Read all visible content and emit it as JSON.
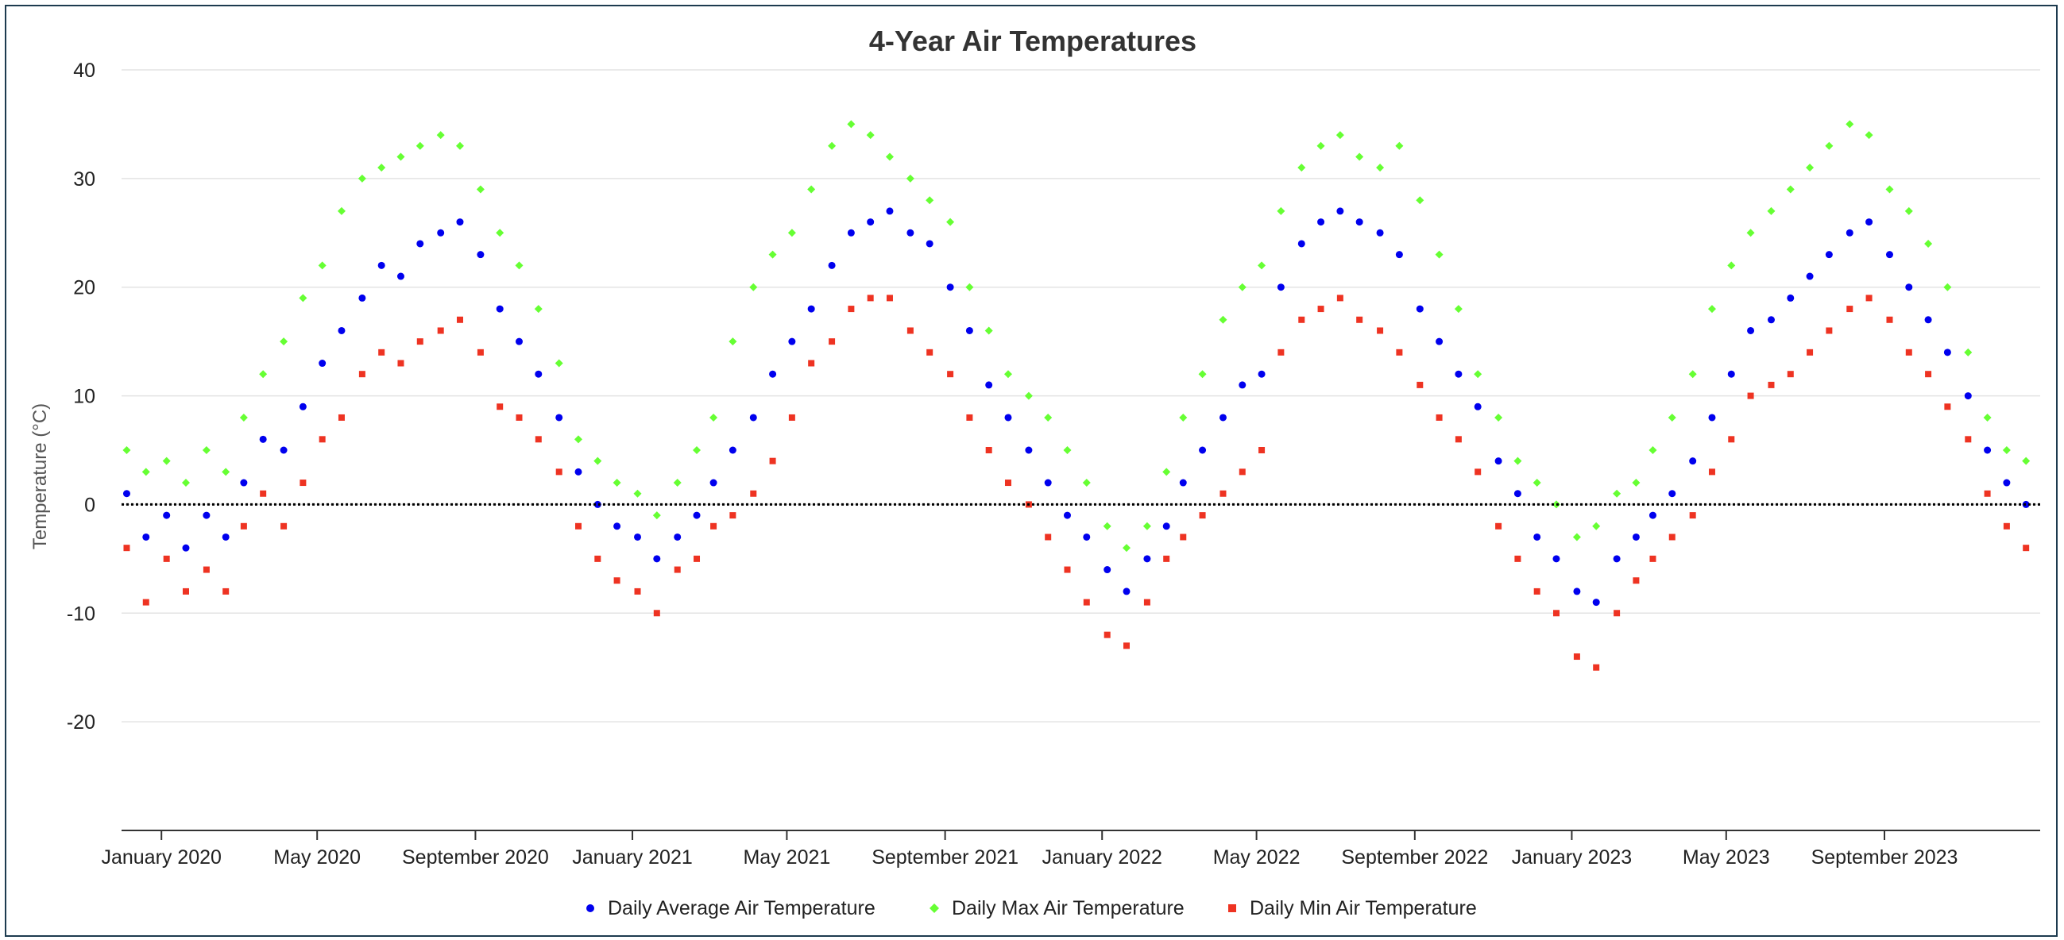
{
  "chart_data": {
    "type": "scatter",
    "title": "4-Year Air Temperatures",
    "xlabel": "",
    "ylabel": "Temperature (°C)",
    "x_range": [
      "2019-12-01",
      "2023-12-31"
    ],
    "ylim": [
      -30,
      40
    ],
    "y_ticks": [
      40,
      30,
      20,
      10,
      0,
      -10,
      -20
    ],
    "x_ticks": [
      {
        "date": "2020-01-01",
        "label": "January 2020"
      },
      {
        "date": "2020-05-01",
        "label": "May 2020"
      },
      {
        "date": "2020-09-01",
        "label": "September 2020"
      },
      {
        "date": "2021-01-01",
        "label": "January 2021"
      },
      {
        "date": "2021-05-01",
        "label": "May 2021"
      },
      {
        "date": "2021-09-01",
        "label": "September 2021"
      },
      {
        "date": "2022-01-01",
        "label": "January 2022"
      },
      {
        "date": "2022-05-01",
        "label": "May 2022"
      },
      {
        "date": "2022-09-01",
        "label": "September 2022"
      },
      {
        "date": "2023-01-01",
        "label": "January 2023"
      },
      {
        "date": "2023-05-01",
        "label": "May 2023"
      },
      {
        "date": "2023-09-01",
        "label": "September 2023"
      }
    ],
    "reference_line": {
      "y": 0,
      "style": "dotted",
      "color": "#000000"
    },
    "grid": "horizontal",
    "legend_position": "bottom-center",
    "series": [
      {
        "name": "Daily Average Air Temperature",
        "marker": "circle",
        "color": "#0000ee",
        "x": [
          "2019-12-05",
          "2019-12-20",
          "2020-01-05",
          "2020-01-20",
          "2020-02-05",
          "2020-02-20",
          "2020-03-05",
          "2020-03-20",
          "2020-04-05",
          "2020-04-20",
          "2020-05-05",
          "2020-05-20",
          "2020-06-05",
          "2020-06-20",
          "2020-07-05",
          "2020-07-20",
          "2020-08-05",
          "2020-08-20",
          "2020-09-05",
          "2020-09-20",
          "2020-10-05",
          "2020-10-20",
          "2020-11-05",
          "2020-11-20",
          "2020-12-05",
          "2020-12-20",
          "2021-01-05",
          "2021-01-20",
          "2021-02-05",
          "2021-02-20",
          "2021-03-05",
          "2021-03-20",
          "2021-04-05",
          "2021-04-20",
          "2021-05-05",
          "2021-05-20",
          "2021-06-05",
          "2021-06-20",
          "2021-07-05",
          "2021-07-20",
          "2021-08-05",
          "2021-08-20",
          "2021-09-05",
          "2021-09-20",
          "2021-10-05",
          "2021-10-20",
          "2021-11-05",
          "2021-11-20",
          "2021-12-05",
          "2021-12-20",
          "2022-01-05",
          "2022-01-20",
          "2022-02-05",
          "2022-02-20",
          "2022-03-05",
          "2022-03-20",
          "2022-04-05",
          "2022-04-20",
          "2022-05-05",
          "2022-05-20",
          "2022-06-05",
          "2022-06-20",
          "2022-07-05",
          "2022-07-20",
          "2022-08-05",
          "2022-08-20",
          "2022-09-05",
          "2022-09-20",
          "2022-10-05",
          "2022-10-20",
          "2022-11-05",
          "2022-11-20",
          "2022-12-05",
          "2022-12-20",
          "2023-01-05",
          "2023-01-20",
          "2023-02-05",
          "2023-02-20",
          "2023-03-05",
          "2023-03-20",
          "2023-04-05",
          "2023-04-20",
          "2023-05-05",
          "2023-05-20",
          "2023-06-05",
          "2023-06-20",
          "2023-07-05",
          "2023-07-20",
          "2023-08-05",
          "2023-08-20",
          "2023-09-05",
          "2023-09-20",
          "2023-10-05",
          "2023-10-20",
          "2023-11-05",
          "2023-11-20",
          "2023-12-05",
          "2023-12-20"
        ],
        "y": [
          1.0,
          -3.0,
          -1.0,
          -4.0,
          -1.0,
          -3.0,
          2.0,
          6.0,
          5.0,
          9.0,
          13.0,
          16.0,
          19.0,
          22.0,
          21.0,
          24.0,
          25.0,
          26.0,
          23.0,
          18.0,
          15.0,
          12.0,
          8.0,
          3.0,
          0.0,
          -2.0,
          -3.0,
          -5.0,
          -3.0,
          -1.0,
          2.0,
          5.0,
          8.0,
          12.0,
          15.0,
          18.0,
          22.0,
          25.0,
          26.0,
          27.0,
          25.0,
          24.0,
          20.0,
          16.0,
          11.0,
          8.0,
          5.0,
          2.0,
          -1.0,
          -3.0,
          -6.0,
          -8.0,
          -5.0,
          -2.0,
          2.0,
          5.0,
          8.0,
          11.0,
          12.0,
          20.0,
          24.0,
          26.0,
          27.0,
          26.0,
          25.0,
          23.0,
          18.0,
          15.0,
          12.0,
          9.0,
          4.0,
          1.0,
          -3.0,
          -5.0,
          -8.0,
          -9.0,
          -5.0,
          -3.0,
          -1.0,
          1.0,
          4.0,
          8.0,
          12.0,
          16.0,
          17.0,
          19.0,
          21.0,
          23.0,
          25.0,
          26.0,
          23.0,
          20.0,
          17.0,
          14.0,
          10.0,
          5.0,
          2.0,
          0.0
        ]
      },
      {
        "name": "Daily Max Air Temperature",
        "marker": "diamond",
        "color": "#66ff33",
        "x": [
          "2019-12-05",
          "2019-12-20",
          "2020-01-05",
          "2020-01-20",
          "2020-02-05",
          "2020-02-20",
          "2020-03-05",
          "2020-03-20",
          "2020-04-05",
          "2020-04-20",
          "2020-05-05",
          "2020-05-20",
          "2020-06-05",
          "2020-06-20",
          "2020-07-05",
          "2020-07-20",
          "2020-08-05",
          "2020-08-20",
          "2020-09-05",
          "2020-09-20",
          "2020-10-05",
          "2020-10-20",
          "2020-11-05",
          "2020-11-20",
          "2020-12-05",
          "2020-12-20",
          "2021-01-05",
          "2021-01-20",
          "2021-02-05",
          "2021-02-20",
          "2021-03-05",
          "2021-03-20",
          "2021-04-05",
          "2021-04-20",
          "2021-05-05",
          "2021-05-20",
          "2021-06-05",
          "2021-06-20",
          "2021-07-05",
          "2021-07-20",
          "2021-08-05",
          "2021-08-20",
          "2021-09-05",
          "2021-09-20",
          "2021-10-05",
          "2021-10-20",
          "2021-11-05",
          "2021-11-20",
          "2021-12-05",
          "2021-12-20",
          "2022-01-05",
          "2022-01-20",
          "2022-02-05",
          "2022-02-20",
          "2022-03-05",
          "2022-03-20",
          "2022-04-05",
          "2022-04-20",
          "2022-05-05",
          "2022-05-20",
          "2022-06-05",
          "2022-06-20",
          "2022-07-05",
          "2022-07-20",
          "2022-08-05",
          "2022-08-20",
          "2022-09-05",
          "2022-09-20",
          "2022-10-05",
          "2022-10-20",
          "2022-11-05",
          "2022-11-20",
          "2022-12-05",
          "2022-12-20",
          "2023-01-05",
          "2023-01-20",
          "2023-02-05",
          "2023-02-20",
          "2023-03-05",
          "2023-03-20",
          "2023-04-05",
          "2023-04-20",
          "2023-05-05",
          "2023-05-20",
          "2023-06-05",
          "2023-06-20",
          "2023-07-05",
          "2023-07-20",
          "2023-08-05",
          "2023-08-20",
          "2023-09-05",
          "2023-09-20",
          "2023-10-05",
          "2023-10-20",
          "2023-11-05",
          "2023-11-20",
          "2023-12-05",
          "2023-12-20"
        ],
        "y": [
          5.0,
          3.0,
          4.0,
          2.0,
          5.0,
          3.0,
          8.0,
          12.0,
          15.0,
          19.0,
          22.0,
          27.0,
          30.0,
          31.0,
          32.0,
          33.0,
          34.0,
          33.0,
          29.0,
          25.0,
          22.0,
          18.0,
          13.0,
          6.0,
          4.0,
          2.0,
          1.0,
          -1.0,
          2.0,
          5.0,
          8.0,
          15.0,
          20.0,
          23.0,
          25.0,
          29.0,
          33.0,
          35.0,
          34.0,
          32.0,
          30.0,
          28.0,
          26.0,
          20.0,
          16.0,
          12.0,
          10.0,
          8.0,
          5.0,
          2.0,
          -2.0,
          -4.0,
          -2.0,
          3.0,
          8.0,
          12.0,
          17.0,
          20.0,
          22.0,
          27.0,
          31.0,
          33.0,
          34.0,
          32.0,
          31.0,
          33.0,
          28.0,
          23.0,
          18.0,
          12.0,
          8.0,
          4.0,
          2.0,
          0.0,
          -3.0,
          -2.0,
          1.0,
          2.0,
          5.0,
          8.0,
          12.0,
          18.0,
          22.0,
          25.0,
          27.0,
          29.0,
          31.0,
          33.0,
          35.0,
          34.0,
          29.0,
          27.0,
          24.0,
          20.0,
          14.0,
          8.0,
          5.0,
          4.0
        ]
      },
      {
        "name": "Daily Min Air Temperature",
        "marker": "square",
        "color": "#ee3322",
        "x": [
          "2019-12-05",
          "2019-12-20",
          "2020-01-05",
          "2020-01-20",
          "2020-02-05",
          "2020-02-20",
          "2020-03-05",
          "2020-03-20",
          "2020-04-05",
          "2020-04-20",
          "2020-05-05",
          "2020-05-20",
          "2020-06-05",
          "2020-06-20",
          "2020-07-05",
          "2020-07-20",
          "2020-08-05",
          "2020-08-20",
          "2020-09-05",
          "2020-09-20",
          "2020-10-05",
          "2020-10-20",
          "2020-11-05",
          "2020-11-20",
          "2020-12-05",
          "2020-12-20",
          "2021-01-05",
          "2021-01-20",
          "2021-02-05",
          "2021-02-20",
          "2021-03-05",
          "2021-03-20",
          "2021-04-05",
          "2021-04-20",
          "2021-05-05",
          "2021-05-20",
          "2021-06-05",
          "2021-06-20",
          "2021-07-05",
          "2021-07-20",
          "2021-08-05",
          "2021-08-20",
          "2021-09-05",
          "2021-09-20",
          "2021-10-05",
          "2021-10-20",
          "2021-11-05",
          "2021-11-20",
          "2021-12-05",
          "2021-12-20",
          "2022-01-05",
          "2022-01-20",
          "2022-02-05",
          "2022-02-20",
          "2022-03-05",
          "2022-03-20",
          "2022-04-05",
          "2022-04-20",
          "2022-05-05",
          "2022-05-20",
          "2022-06-05",
          "2022-06-20",
          "2022-07-05",
          "2022-07-20",
          "2022-08-05",
          "2022-08-20",
          "2022-09-05",
          "2022-09-20",
          "2022-10-05",
          "2022-10-20",
          "2022-11-05",
          "2022-11-20",
          "2022-12-05",
          "2022-12-20",
          "2023-01-05",
          "2023-01-20",
          "2023-02-05",
          "2023-02-20",
          "2023-03-05",
          "2023-03-20",
          "2023-04-05",
          "2023-04-20",
          "2023-05-05",
          "2023-05-20",
          "2023-06-05",
          "2023-06-20",
          "2023-07-05",
          "2023-07-20",
          "2023-08-05",
          "2023-08-20",
          "2023-09-05",
          "2023-09-20",
          "2023-10-05",
          "2023-10-20",
          "2023-11-05",
          "2023-11-20",
          "2023-12-05",
          "2023-12-20"
        ],
        "y": [
          -4.0,
          -9.0,
          -5.0,
          -8.0,
          -6.0,
          -8.0,
          -2.0,
          1.0,
          -2.0,
          2.0,
          6.0,
          8.0,
          12.0,
          14.0,
          13.0,
          15.0,
          16.0,
          17.0,
          14.0,
          9.0,
          8.0,
          6.0,
          3.0,
          -2.0,
          -5.0,
          -7.0,
          -8.0,
          -10.0,
          -6.0,
          -5.0,
          -2.0,
          -1.0,
          1.0,
          4.0,
          8.0,
          13.0,
          15.0,
          18.0,
          19.0,
          19.0,
          16.0,
          14.0,
          12.0,
          8.0,
          5.0,
          2.0,
          0.0,
          -3.0,
          -6.0,
          -9.0,
          -12.0,
          -13.0,
          -9.0,
          -5.0,
          -3.0,
          -1.0,
          1.0,
          3.0,
          5.0,
          14.0,
          17.0,
          18.0,
          19.0,
          17.0,
          16.0,
          14.0,
          11.0,
          8.0,
          6.0,
          3.0,
          -2.0,
          -5.0,
          -8.0,
          -10.0,
          -14.0,
          -15.0,
          -10.0,
          -7.0,
          -5.0,
          -3.0,
          -1.0,
          3.0,
          6.0,
          10.0,
          11.0,
          12.0,
          14.0,
          16.0,
          18.0,
          19.0,
          17.0,
          14.0,
          12.0,
          9.0,
          6.0,
          1.0,
          -2.0,
          -4.0
        ]
      }
    ]
  }
}
